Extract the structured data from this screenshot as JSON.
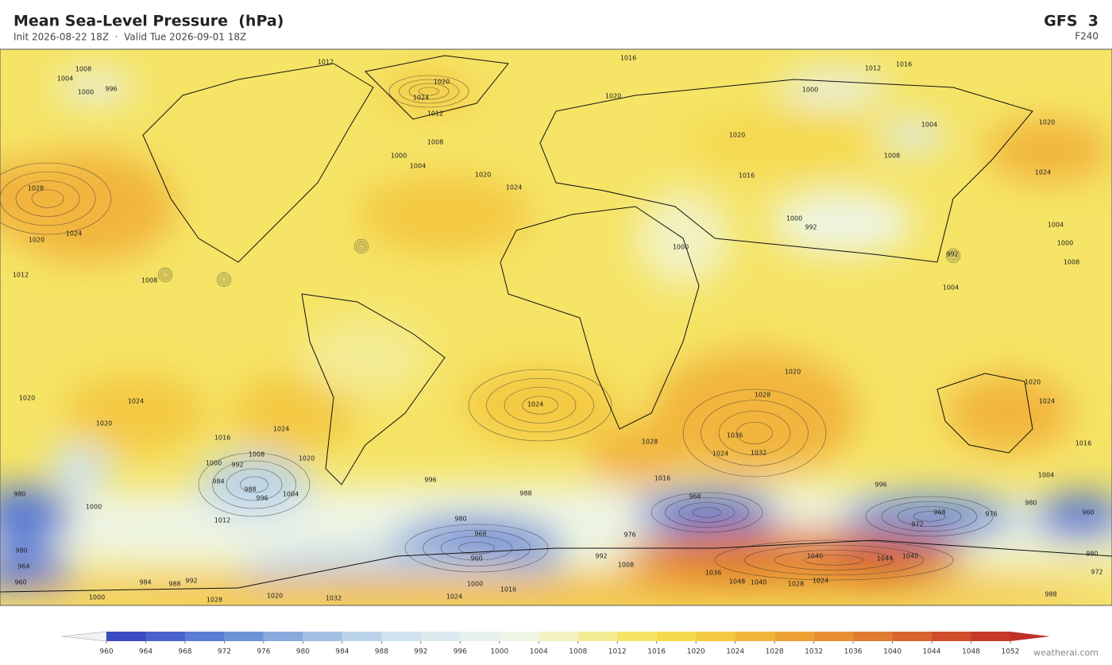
{
  "header": {
    "title": "Mean Sea-Level Pressure  (hPa)",
    "subtitle": "Init 2026-08-22 18Z  ·  Valid Tue 2026-09-01 18Z",
    "model": "GFS  3",
    "lead": "F240"
  },
  "map": {
    "contour_labels": [
      1008,
      1004,
      1000,
      996,
      1012,
      1020,
      1024,
      1012,
      1008,
      1000,
      1004,
      1016,
      1016,
      1012,
      1000,
      1020,
      1020,
      1016,
      1004,
      1020,
      1024,
      1008,
      1028,
      1024,
      1020,
      1012,
      1008,
      1020,
      1024,
      1000,
      992,
      1000,
      992,
      1004,
      1000,
      1008,
      1004,
      1020,
      1024,
      1028,
      1032,
      1036,
      1024,
      1028,
      1016,
      1024,
      1020,
      1020,
      1024,
      1020,
      1016,
      1008,
      992,
      1000,
      984,
      988,
      996,
      1004,
      1012,
      1020,
      1024,
      1016,
      1004,
      996,
      988,
      980,
      968,
      960,
      968,
      976,
      968,
      972,
      976,
      996,
      980,
      960,
      980,
      1000,
      980,
      964,
      960,
      984,
      988,
      992,
      1000,
      1016,
      992,
      1008,
      1040,
      1044,
      1040,
      1048,
      1040,
      1036,
      1028,
      1024,
      1000,
      1028,
      1020,
      1032,
      1024,
      980,
      972,
      988
    ]
  },
  "colorbar": {
    "ticks": [
      960,
      964,
      968,
      972,
      976,
      980,
      984,
      988,
      992,
      996,
      1000,
      1004,
      1008,
      1012,
      1016,
      1020,
      1024,
      1028,
      1032,
      1036,
      1040,
      1044,
      1048,
      1052
    ],
    "colors": [
      "#f2f2f4",
      "#3b4cc0",
      "#4a62cc",
      "#5b7dd3",
      "#6d93d6",
      "#88aadc",
      "#a3c1e3",
      "#bcd4ea",
      "#cfe2ee",
      "#ddebf0",
      "#e6f1ee",
      "#eef5e4",
      "#f2f2c2",
      "#f4ec94",
      "#f5e466",
      "#f5d94f",
      "#f4c943",
      "#f2b53c",
      "#eda236",
      "#e88f33",
      "#e17b31",
      "#d9642e",
      "#cf4d2b",
      "#c53a28",
      "#c0302a"
    ]
  },
  "watermark": "weatherai.com"
}
